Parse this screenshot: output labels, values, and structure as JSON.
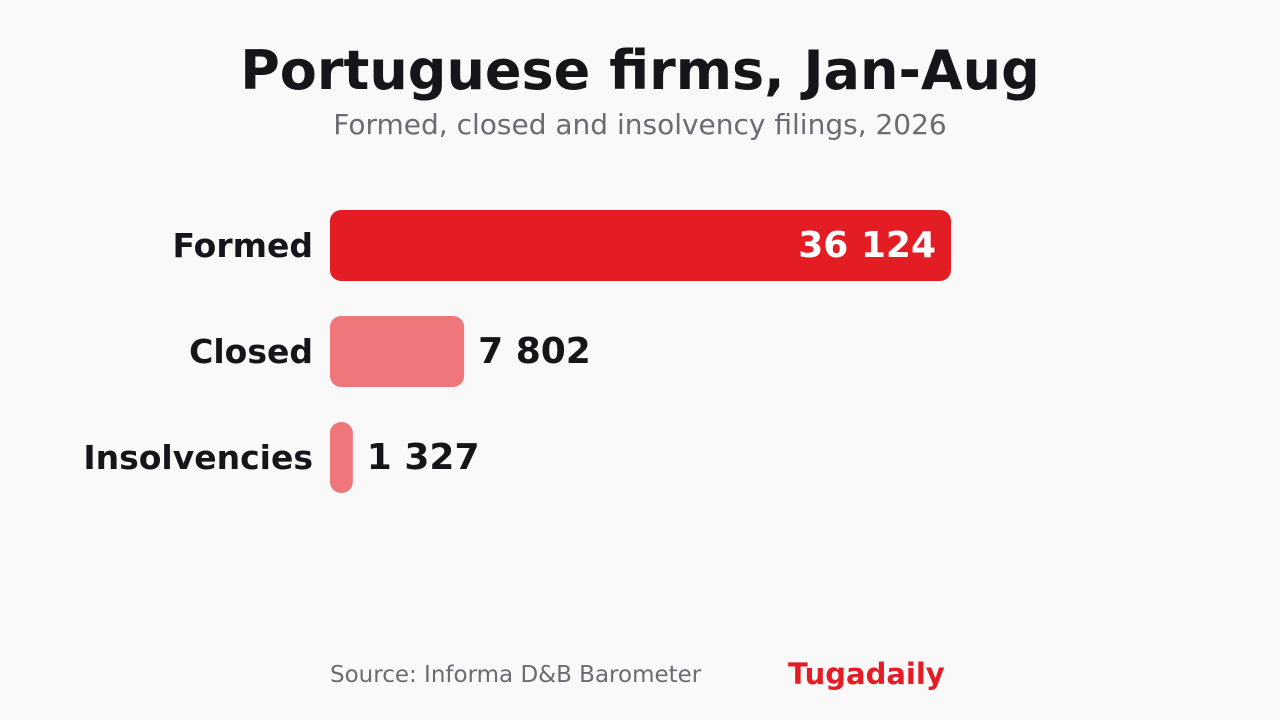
{
  "header": {
    "title": "Portuguese firms, Jan-Aug",
    "subtitle": "Formed, closed and insolvency filings, 2026"
  },
  "footer": {
    "source": "Source: Informa D&B Barometer",
    "brand": "Tugadaily"
  },
  "colors": {
    "primary": "#e41c24",
    "secondary": "#ef777b",
    "brand": "#e41c24",
    "label_on_bar": "#ffffff",
    "label_outside": "#15151a"
  },
  "chart_data": {
    "type": "bar",
    "orientation": "horizontal",
    "title": "Portuguese firms, Jan-Aug",
    "subtitle": "Formed, closed and insolvency filings, 2026",
    "categories": [
      "Formed",
      "Closed",
      "Insolvencies"
    ],
    "values": [
      36124,
      7802,
      1327
    ],
    "value_labels": [
      "36 124",
      "7 802",
      "1 327"
    ],
    "xlim": [
      0,
      36124
    ],
    "grid": false,
    "legend": "none"
  }
}
